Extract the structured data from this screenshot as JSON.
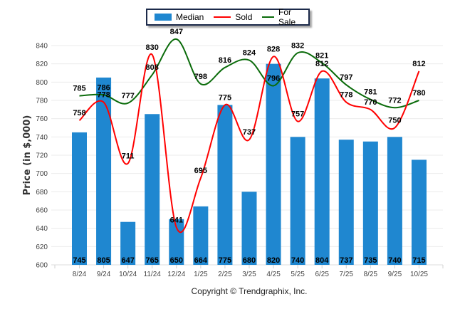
{
  "chart_data": {
    "type": "bar",
    "title": "",
    "xlabel": "",
    "ylabel": "Price (in $,000)",
    "ylim": [
      600,
      840
    ],
    "yticks": [
      600,
      620,
      640,
      660,
      680,
      700,
      720,
      740,
      760,
      780,
      800,
      820,
      840
    ],
    "grid": true,
    "legend_position": "top-center",
    "categories": [
      "8/24",
      "9/24",
      "10/24",
      "11/24",
      "12/24",
      "1/25",
      "2/25",
      "3/25",
      "4/25",
      "5/25",
      "6/25",
      "7/25",
      "8/25",
      "9/25",
      "10/25"
    ],
    "series": [
      {
        "name": "Median",
        "type": "bar",
        "color": "#1f87d0",
        "values": [
          745,
          805,
          647,
          765,
          650,
          664,
          775,
          680,
          820,
          740,
          804,
          737,
          735,
          740,
          715
        ]
      },
      {
        "name": "Sold",
        "type": "line",
        "color": "#ff0000",
        "values": [
          758,
          778,
          711,
          830,
          641,
          695,
          775,
          737,
          828,
          757,
          812,
          778,
          770,
          750,
          812
        ]
      },
      {
        "name": "For Sale",
        "type": "line",
        "color": "#0a6b0a",
        "values": [
          785,
          786,
          777,
          808,
          847,
          798,
          816,
          824,
          796,
          832,
          821,
          797,
          781,
          772,
          780
        ]
      }
    ]
  },
  "legend": {
    "items": [
      {
        "label": "Median",
        "color": "#1f87d0"
      },
      {
        "label": "Sold",
        "color": "#ff0000"
      },
      {
        "label": "For Sale",
        "color": "#0a6b0a"
      }
    ]
  },
  "footer": {
    "copyright": "Copyright © Trendgraphix, Inc."
  }
}
